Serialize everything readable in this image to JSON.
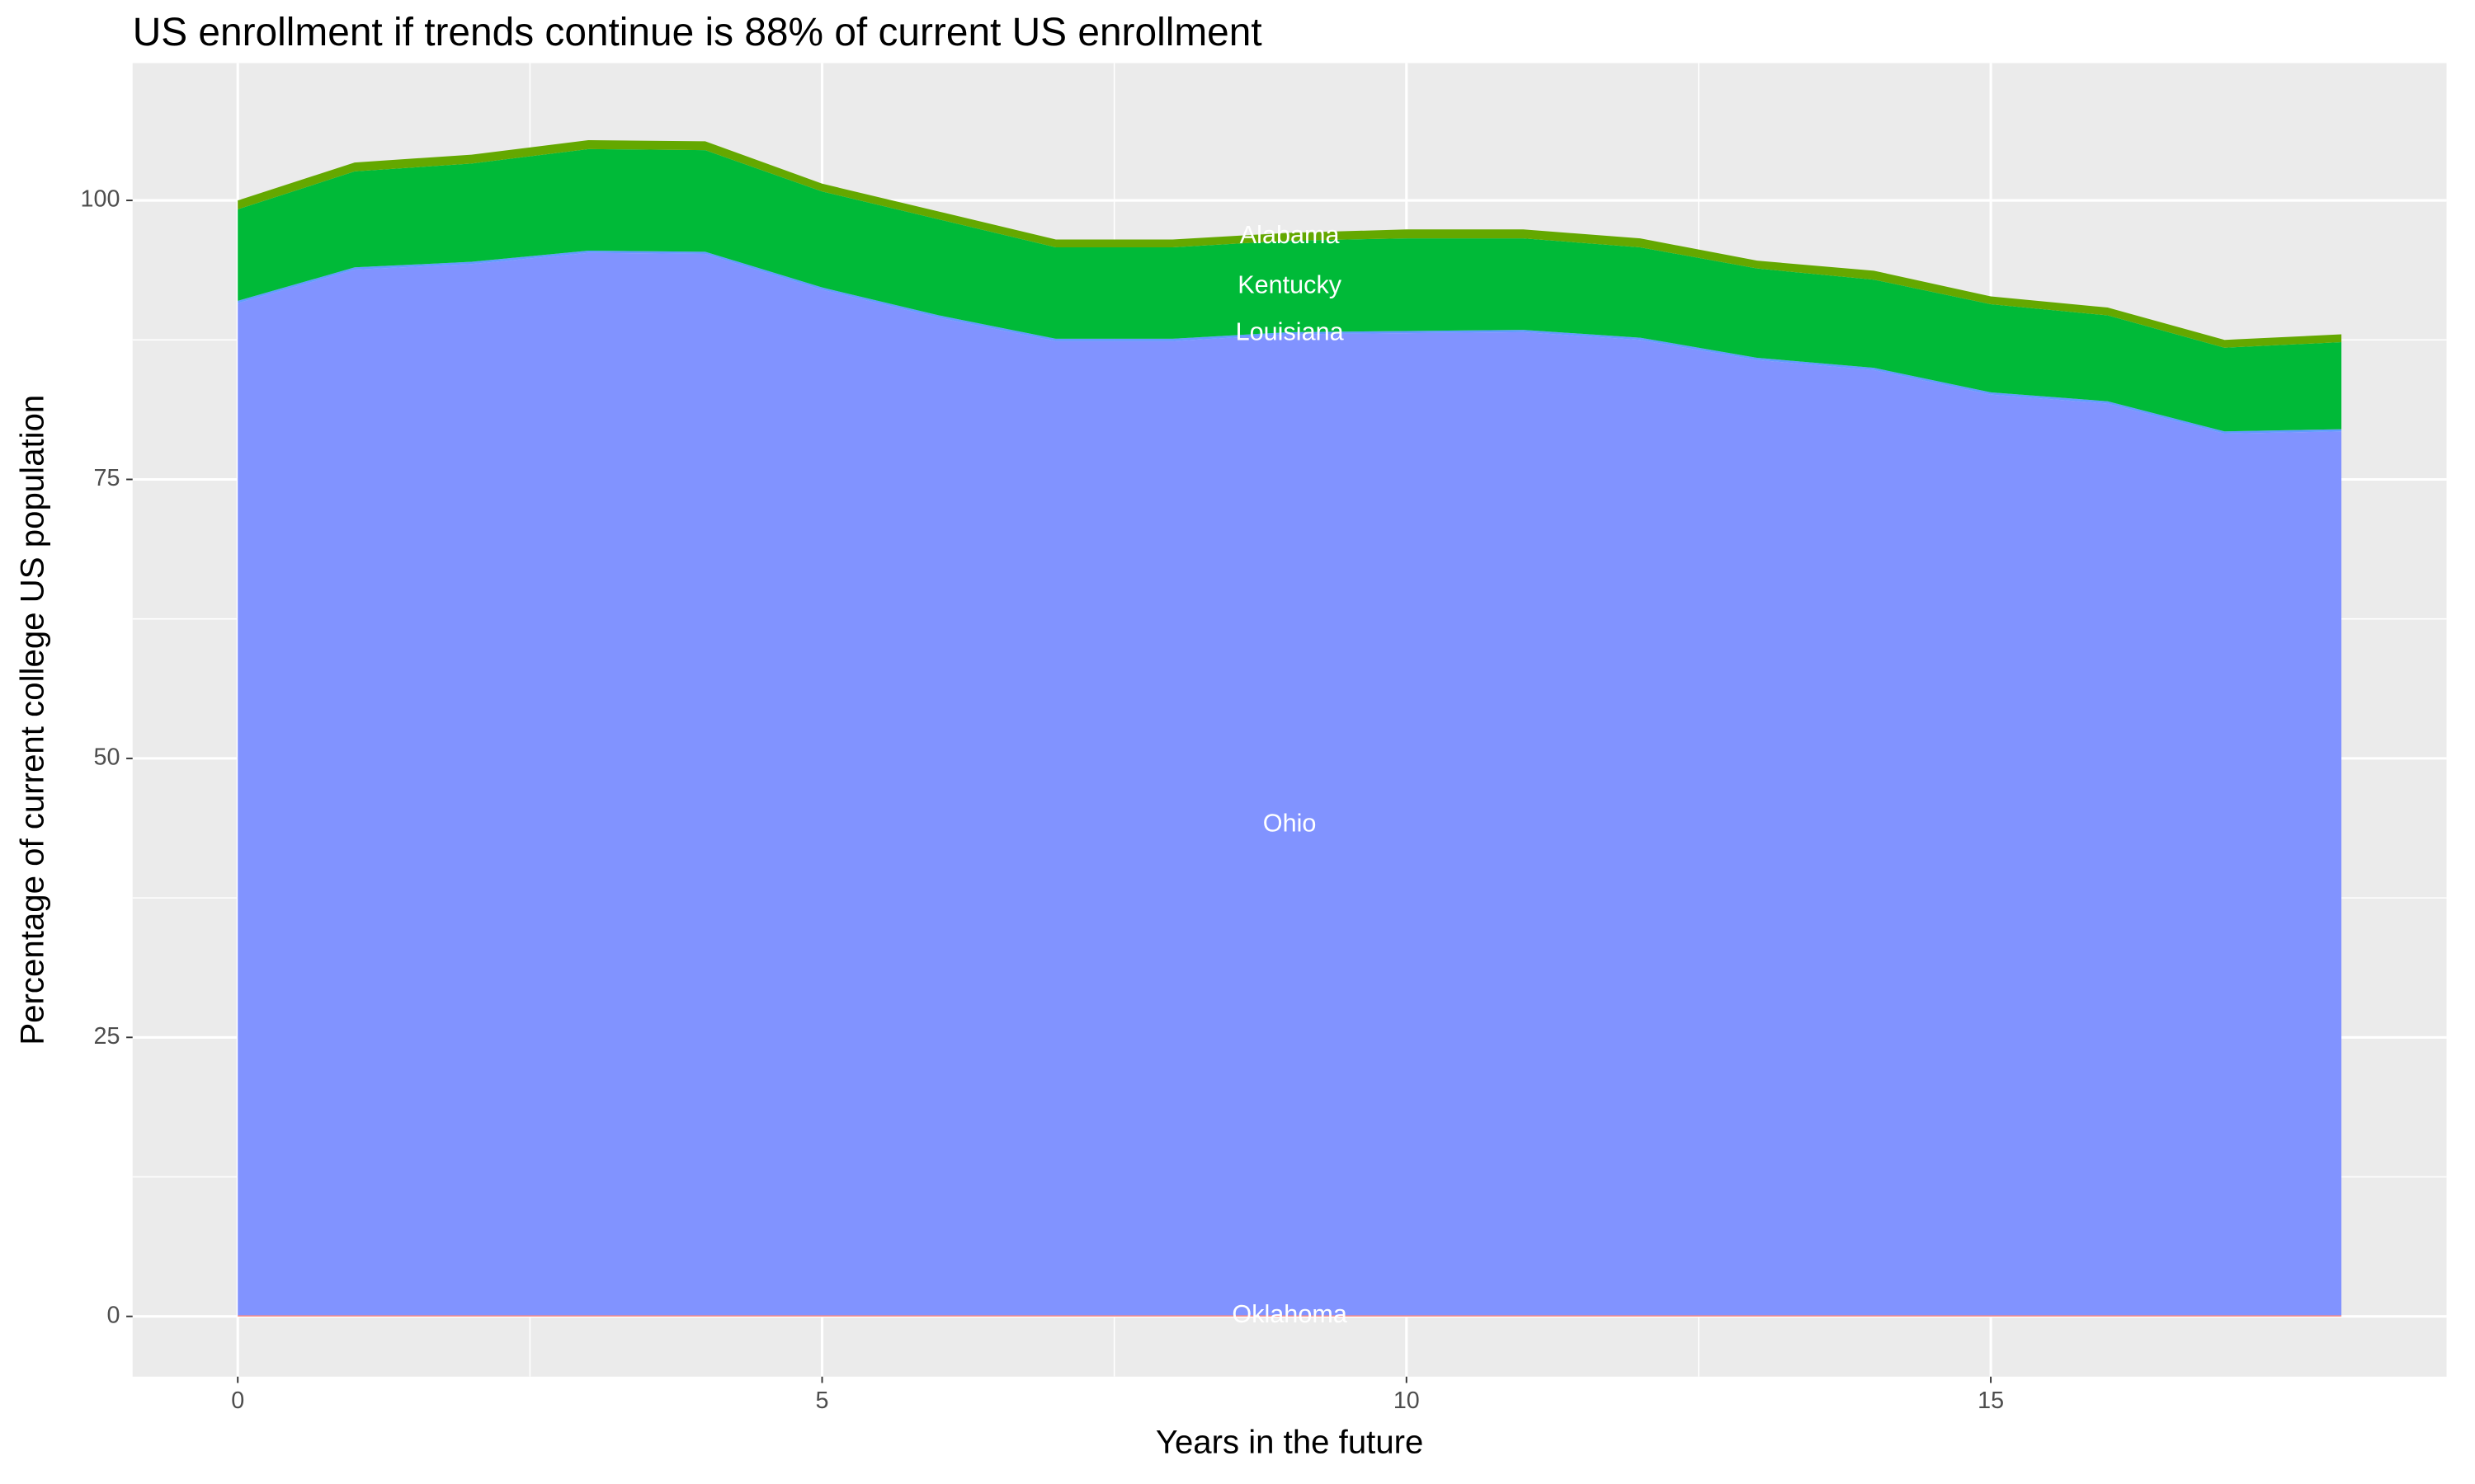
{
  "chart_data": {
    "type": "stacked_area",
    "title": "US enrollment if trends continue is 88% of current US enrollment",
    "x_label": "Years in the future",
    "y_label": "Percentage of current college US population",
    "x": [
      0,
      1,
      2,
      3,
      4,
      5,
      6,
      7,
      8,
      9,
      10,
      11,
      12,
      13,
      14,
      15,
      16,
      17,
      18
    ],
    "series": [
      {
        "name": "Oklahoma",
        "color": "#F8766D",
        "values": [
          0.1,
          0.1,
          0.1,
          0.1,
          0.1,
          0.1,
          0.1,
          0.1,
          0.1,
          0.1,
          0.1,
          0.1,
          0.1,
          0.1,
          0.1,
          0.1,
          0.1,
          0.1,
          0.1
        ]
      },
      {
        "name": "Ohio",
        "color": "#8193FF",
        "values": [
          90.7,
          93.7,
          94.2,
          95.2,
          95.1,
          91.9,
          89.4,
          87.3,
          87.3,
          87.9,
          88.0,
          88.1,
          87.4,
          85.6,
          84.7,
          82.5,
          81.7,
          79.0,
          79.2
        ]
      },
      {
        "name": "Louisiana",
        "color": "#619CFF",
        "values": [
          0.2,
          0.2,
          0.2,
          0.2,
          0.2,
          0.2,
          0.2,
          0.2,
          0.2,
          0.2,
          0.2,
          0.2,
          0.2,
          0.2,
          0.2,
          0.2,
          0.2,
          0.2,
          0.2
        ]
      },
      {
        "name": "Kentucky",
        "color": "#00BA38",
        "values": [
          8.2,
          8.6,
          8.8,
          9.1,
          9.1,
          8.6,
          8.6,
          8.2,
          8.2,
          8.2,
          8.3,
          8.2,
          8.1,
          8.0,
          7.9,
          7.9,
          7.7,
          7.5,
          7.8
        ]
      },
      {
        "name": "Alabama",
        "color": "#64A800",
        "values": [
          0.8,
          0.8,
          0.8,
          0.8,
          0.8,
          0.7,
          0.7,
          0.7,
          0.7,
          0.7,
          0.8,
          0.8,
          0.8,
          0.7,
          0.8,
          0.7,
          0.7,
          0.7,
          0.7
        ]
      }
    ],
    "label_x": 9,
    "xlim": [
      -0.9,
      18.9
    ],
    "xticks": [
      0,
      5,
      10,
      15
    ],
    "ylim": [
      -5.4,
      112.3
    ],
    "yticks": [
      0,
      25,
      50,
      75,
      100
    ],
    "grid": true,
    "minor_grid": true
  }
}
